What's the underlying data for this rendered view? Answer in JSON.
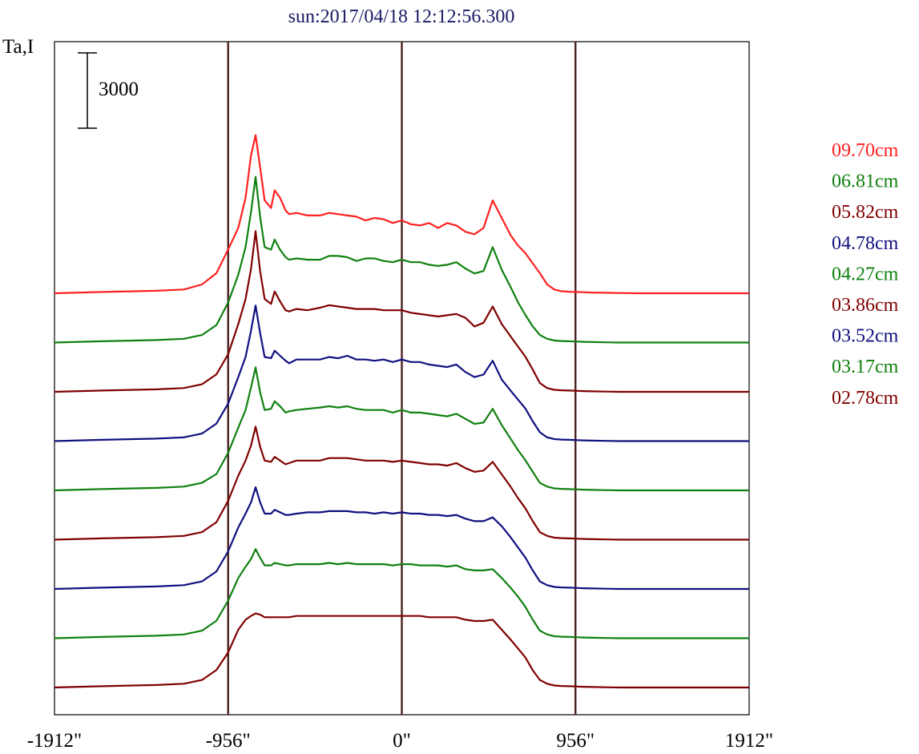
{
  "chart_data": {
    "type": "line",
    "title": "sun:2017/04/18 12:12:56.300",
    "ylabel": "Ta,I",
    "scale_bar_label": "3000",
    "xlim": [
      -1912,
      1912
    ],
    "x_ticks": [
      {
        "value": -1912,
        "label": "-1912\""
      },
      {
        "value": -956,
        "label": "-956\""
      },
      {
        "value": 0,
        "label": "0\""
      },
      {
        "value": 956,
        "label": "956\""
      },
      {
        "value": 1912,
        "label": "1912\""
      }
    ],
    "vertical_lines": [
      -956,
      0,
      956
    ],
    "grid": false,
    "legend_position": "right",
    "x": [
      -1912,
      -1650,
      -1350,
      -1200,
      -1100,
      -1020,
      -956,
      -900,
      -860,
      -830,
      -805,
      -780,
      -755,
      -720,
      -700,
      -670,
      -640,
      -620,
      -580,
      -520,
      -450,
      -400,
      -350,
      -300,
      -250,
      -200,
      -150,
      -100,
      -50,
      0,
      50,
      100,
      150,
      200,
      250,
      300,
      350,
      400,
      450,
      500,
      550,
      600,
      640,
      680,
      720,
      760,
      800,
      840,
      880,
      920,
      956,
      1000,
      1050,
      1120,
      1200,
      1300,
      1400,
      1600,
      1912
    ],
    "series": [
      {
        "name": "09.70cm",
        "color": "#ff2020",
        "values": [
          0,
          50,
          100,
          150,
          350,
          800,
          1750,
          2600,
          3800,
          5500,
          6300,
          5000,
          3700,
          3400,
          4100,
          3800,
          3300,
          3150,
          3200,
          3100,
          3100,
          3200,
          3150,
          3100,
          3050,
          2900,
          3000,
          2950,
          2800,
          2900,
          2750,
          2700,
          2800,
          2600,
          2800,
          2700,
          2450,
          2350,
          2600,
          3700,
          3000,
          2300,
          1900,
          1600,
          1200,
          800,
          350,
          150,
          80,
          60,
          50,
          40,
          30,
          20,
          10,
          0,
          0,
          0,
          0
        ]
      },
      {
        "name": "06.81cm",
        "color": "#108010",
        "values": [
          0,
          50,
          100,
          150,
          300,
          700,
          1600,
          2700,
          3800,
          5200,
          6600,
          5000,
          3800,
          3700,
          4100,
          3700,
          3400,
          3300,
          3350,
          3300,
          3300,
          3450,
          3450,
          3400,
          3250,
          3350,
          3350,
          3250,
          3200,
          3300,
          3200,
          3200,
          3100,
          3050,
          3100,
          3200,
          2950,
          2750,
          2850,
          3800,
          2900,
          2200,
          1600,
          1100,
          650,
          300,
          150,
          80,
          60,
          50,
          40,
          30,
          20,
          10,
          0,
          0,
          0,
          0,
          0
        ]
      },
      {
        "name": "05.82cm",
        "color": "#800000",
        "values": [
          0,
          50,
          100,
          150,
          300,
          700,
          1500,
          2700,
          3700,
          4900,
          6400,
          4800,
          3700,
          3500,
          4000,
          3600,
          3250,
          3200,
          3300,
          3250,
          3350,
          3450,
          3400,
          3350,
          3300,
          3300,
          3300,
          3250,
          3250,
          3250,
          3150,
          3100,
          3050,
          3000,
          3050,
          3100,
          2950,
          2600,
          2750,
          3400,
          2700,
          2200,
          1800,
          1400,
          900,
          350,
          150,
          80,
          60,
          50,
          40,
          30,
          20,
          10,
          0,
          0,
          0,
          0,
          0
        ]
      },
      {
        "name": "04.78cm",
        "color": "#101080",
        "values": [
          0,
          50,
          100,
          150,
          300,
          700,
          1500,
          2550,
          3350,
          4400,
          5400,
          4300,
          3350,
          3300,
          3600,
          3400,
          3200,
          3100,
          3250,
          3250,
          3250,
          3350,
          3300,
          3400,
          3250,
          3250,
          3200,
          3250,
          3150,
          3250,
          3150,
          3150,
          3050,
          3000,
          2950,
          3050,
          2750,
          2550,
          2650,
          3200,
          2450,
          2000,
          1650,
          1300,
          800,
          350,
          150,
          80,
          60,
          50,
          40,
          30,
          20,
          10,
          0,
          0,
          0,
          0,
          0
        ]
      },
      {
        "name": "04.27cm",
        "color": "#108010",
        "values": [
          0,
          50,
          100,
          150,
          300,
          650,
          1500,
          2500,
          3200,
          4100,
          4900,
          3900,
          3200,
          3250,
          3550,
          3350,
          3100,
          3150,
          3200,
          3250,
          3300,
          3350,
          3300,
          3350,
          3250,
          3200,
          3200,
          3200,
          3100,
          3200,
          3100,
          3100,
          3050,
          3000,
          2950,
          3050,
          2850,
          2650,
          2700,
          3250,
          2600,
          2050,
          1600,
          1200,
          750,
          300,
          150,
          80,
          60,
          50,
          40,
          30,
          20,
          10,
          0,
          0,
          0,
          0,
          0
        ]
      },
      {
        "name": "03.86cm",
        "color": "#800000",
        "values": [
          0,
          50,
          100,
          150,
          300,
          700,
          1550,
          2550,
          3150,
          3750,
          4500,
          3700,
          3150,
          3100,
          3300,
          3150,
          3000,
          3050,
          3150,
          3150,
          3150,
          3250,
          3250,
          3250,
          3200,
          3150,
          3150,
          3150,
          3100,
          3150,
          3100,
          3050,
          3000,
          3000,
          2950,
          3050,
          2850,
          2700,
          2750,
          3100,
          2600,
          2100,
          1650,
          1250,
          750,
          300,
          150,
          80,
          60,
          50,
          40,
          30,
          20,
          10,
          0,
          0,
          0,
          0,
          0
        ]
      },
      {
        "name": "03.52cm",
        "color": "#101080",
        "values": [
          0,
          50,
          100,
          150,
          300,
          700,
          1500,
          2450,
          3000,
          3450,
          4050,
          3450,
          3000,
          3000,
          3150,
          3050,
          2950,
          2950,
          3000,
          3050,
          3050,
          3100,
          3100,
          3100,
          3050,
          3050,
          3000,
          3050,
          3000,
          3050,
          3000,
          3000,
          2950,
          2950,
          2900,
          2950,
          2800,
          2700,
          2700,
          2850,
          2500,
          2050,
          1650,
          1250,
          750,
          300,
          150,
          80,
          60,
          50,
          40,
          30,
          20,
          10,
          0,
          0,
          0,
          0,
          0
        ]
      },
      {
        "name": "03.17cm",
        "color": "#108010",
        "values": [
          0,
          50,
          100,
          150,
          300,
          700,
          1500,
          2400,
          2850,
          3150,
          3550,
          3200,
          2900,
          2900,
          3000,
          2950,
          2900,
          2900,
          2950,
          2950,
          2950,
          3000,
          2950,
          3000,
          2950,
          2950,
          2950,
          2950,
          2900,
          2950,
          2950,
          2900,
          2900,
          2900,
          2850,
          2900,
          2750,
          2700,
          2700,
          2750,
          2400,
          2000,
          1650,
          1250,
          750,
          300,
          150,
          80,
          60,
          50,
          40,
          30,
          20,
          10,
          0,
          0,
          0,
          0,
          0
        ]
      },
      {
        "name": "02.78cm",
        "color": "#800000",
        "values": [
          0,
          50,
          100,
          150,
          300,
          700,
          1400,
          2300,
          2700,
          2850,
          2950,
          2900,
          2800,
          2800,
          2800,
          2800,
          2800,
          2800,
          2850,
          2850,
          2850,
          2850,
          2850,
          2850,
          2850,
          2850,
          2850,
          2850,
          2850,
          2850,
          2850,
          2850,
          2800,
          2800,
          2800,
          2800,
          2700,
          2650,
          2650,
          2700,
          2300,
          1900,
          1550,
          1200,
          700,
          300,
          150,
          80,
          60,
          50,
          40,
          30,
          20,
          10,
          0,
          0,
          0,
          0,
          0
        ]
      }
    ]
  }
}
